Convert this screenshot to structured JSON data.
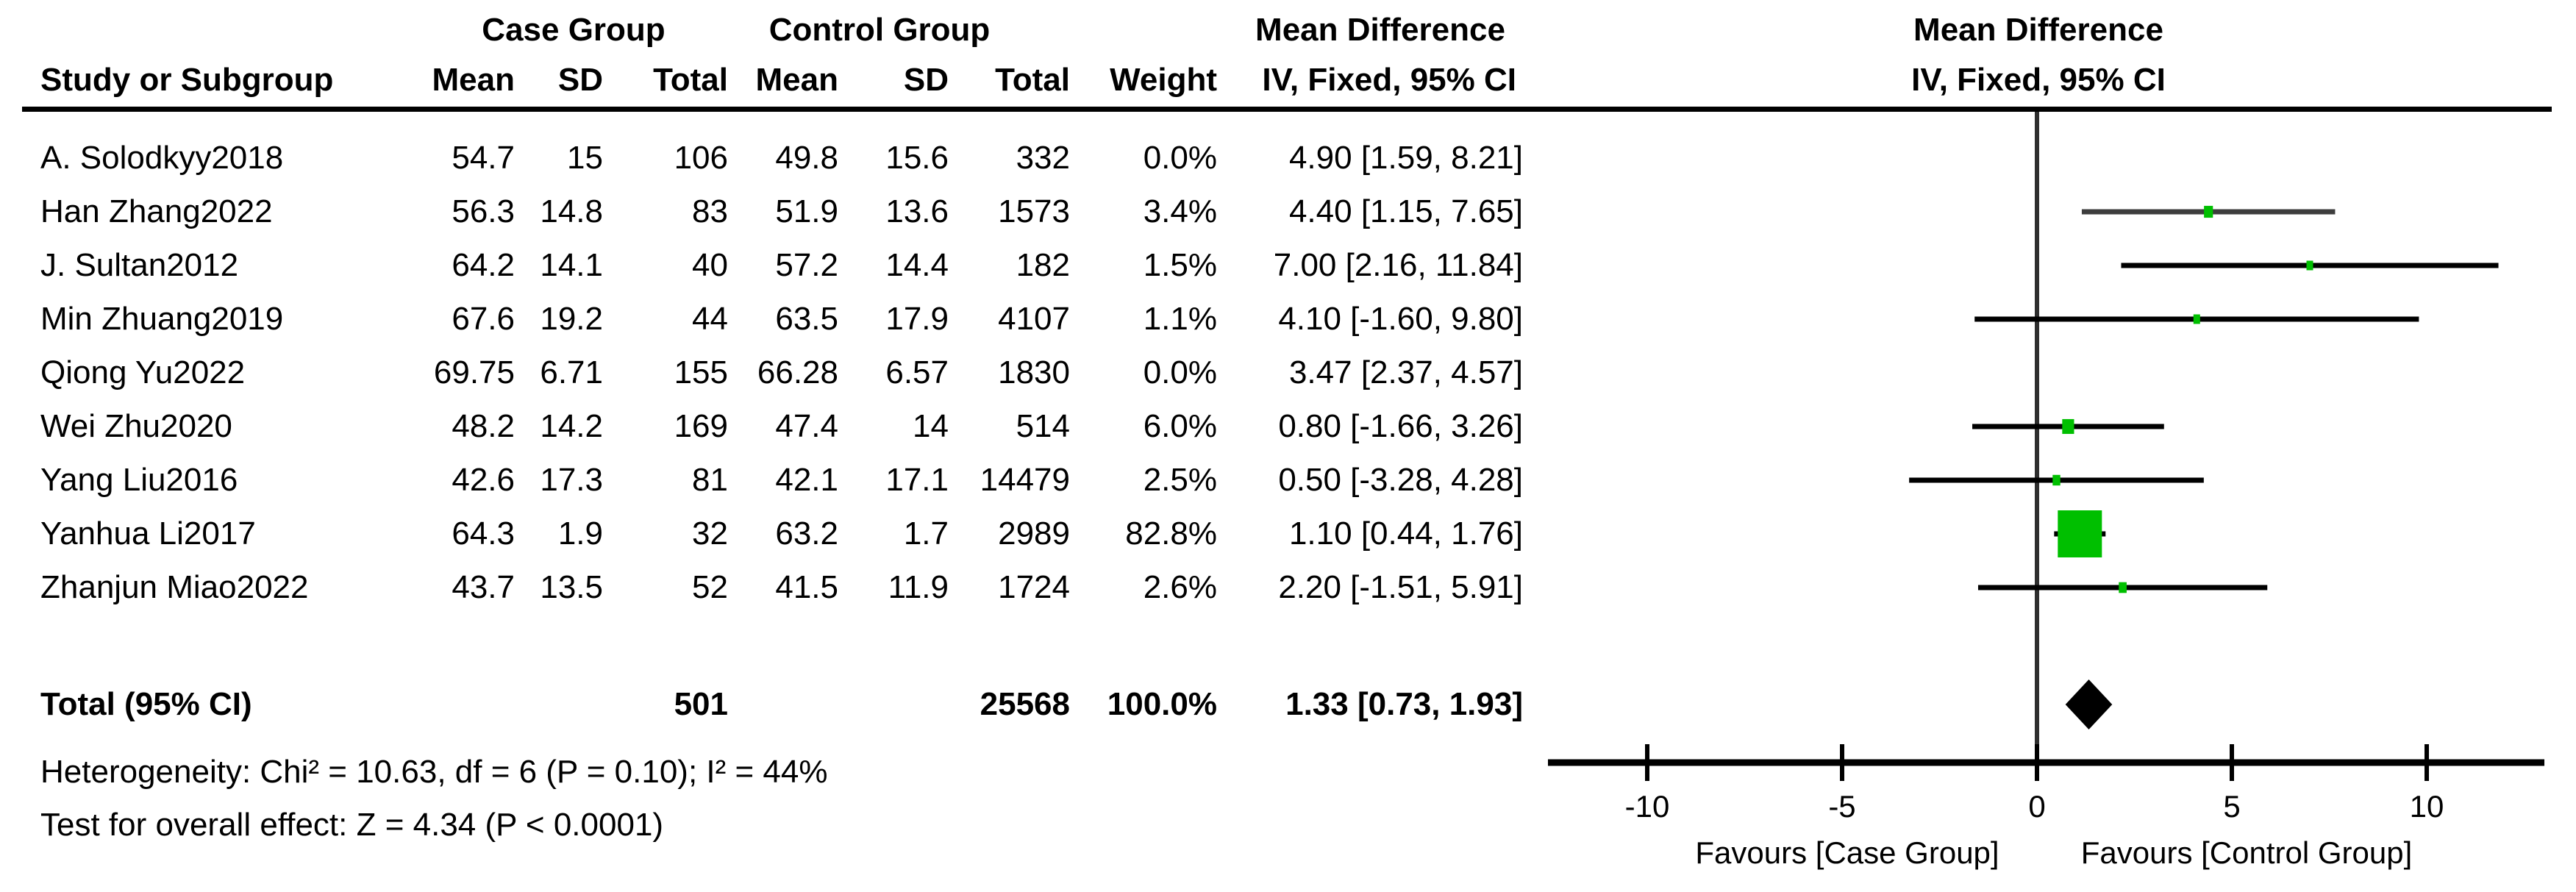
{
  "header": {
    "case_group": "Case Group",
    "control_group": "Control Group",
    "mean_difference_left": "Mean Difference",
    "mean_difference_right": "Mean Difference",
    "study_or_subgroup": "Study or Subgroup",
    "col_mean_case": "Mean",
    "col_sd_case": "SD",
    "col_total_case": "Total",
    "col_mean_ctrl": "Mean",
    "col_sd_ctrl": "SD",
    "col_total_ctrl": "Total",
    "col_weight": "Weight",
    "iv_fixed_left": "IV, Fixed, 95% CI",
    "iv_fixed_right": "IV, Fixed, 95% CI"
  },
  "chart_data": {
    "type": "forest",
    "effect_measure": "Mean Difference",
    "method": "IV, Fixed, 95% CI",
    "studies": [
      {
        "name": "A. Solodkyy2018",
        "case_mean": "54.7",
        "case_sd": "15",
        "case_total": "106",
        "ctrl_mean": "49.8",
        "ctrl_sd": "15.6",
        "ctrl_total": "332",
        "weight": "0.0%",
        "weight_value": 0,
        "md": 4.9,
        "ci_lo": 1.59,
        "ci_hi": 8.21,
        "ci_label": "4.90 [1.59, 8.21]",
        "plotted": false,
        "line_color": "#000000"
      },
      {
        "name": "Han Zhang2022",
        "case_mean": "56.3",
        "case_sd": "14.8",
        "case_total": "83",
        "ctrl_mean": "51.9",
        "ctrl_sd": "13.6",
        "ctrl_total": "1573",
        "weight": "3.4%",
        "weight_value": 3.4,
        "md": 4.4,
        "ci_lo": 1.15,
        "ci_hi": 7.65,
        "ci_label": "4.40 [1.15, 7.65]",
        "plotted": true,
        "line_color": "#3d3d3d"
      },
      {
        "name": "J. Sultan2012",
        "case_mean": "64.2",
        "case_sd": "14.1",
        "case_total": "40",
        "ctrl_mean": "57.2",
        "ctrl_sd": "14.4",
        "ctrl_total": "182",
        "weight": "1.5%",
        "weight_value": 1.5,
        "md": 7.0,
        "ci_lo": 2.16,
        "ci_hi": 11.84,
        "ci_label": "7.00 [2.16, 11.84]",
        "plotted": true,
        "line_color": "#000000"
      },
      {
        "name": "Min Zhuang2019",
        "case_mean": "67.6",
        "case_sd": "19.2",
        "case_total": "44",
        "ctrl_mean": "63.5",
        "ctrl_sd": "17.9",
        "ctrl_total": "4107",
        "weight": "1.1%",
        "weight_value": 1.1,
        "md": 4.1,
        "ci_lo": -1.6,
        "ci_hi": 9.8,
        "ci_label": "4.10 [-1.60, 9.80]",
        "plotted": true,
        "line_color": "#000000"
      },
      {
        "name": "Qiong Yu2022",
        "case_mean": "69.75",
        "case_sd": "6.71",
        "case_total": "155",
        "ctrl_mean": "66.28",
        "ctrl_sd": "6.57",
        "ctrl_total": "1830",
        "weight": "0.0%",
        "weight_value": 0,
        "md": 3.47,
        "ci_lo": 2.37,
        "ci_hi": 4.57,
        "ci_label": "3.47 [2.37, 4.57]",
        "plotted": false,
        "line_color": "#000000"
      },
      {
        "name": "Wei Zhu2020",
        "case_mean": "48.2",
        "case_sd": "14.2",
        "case_total": "169",
        "ctrl_mean": "47.4",
        "ctrl_sd": "14",
        "ctrl_total": "514",
        "weight": "6.0%",
        "weight_value": 6.0,
        "md": 0.8,
        "ci_lo": -1.66,
        "ci_hi": 3.26,
        "ci_label": "0.80 [-1.66, 3.26]",
        "plotted": true,
        "line_color": "#000000"
      },
      {
        "name": "Yang Liu2016",
        "case_mean": "42.6",
        "case_sd": "17.3",
        "case_total": "81",
        "ctrl_mean": "42.1",
        "ctrl_sd": "17.1",
        "ctrl_total": "14479",
        "weight": "2.5%",
        "weight_value": 2.5,
        "md": 0.5,
        "ci_lo": -3.28,
        "ci_hi": 4.28,
        "ci_label": "0.50 [-3.28, 4.28]",
        "plotted": true,
        "line_color": "#000000"
      },
      {
        "name": "Yanhua Li2017",
        "case_mean": "64.3",
        "case_sd": "1.9",
        "case_total": "32",
        "ctrl_mean": "63.2",
        "ctrl_sd": "1.7",
        "ctrl_total": "2989",
        "weight": "82.8%",
        "weight_value": 82.8,
        "md": 1.1,
        "ci_lo": 0.44,
        "ci_hi": 1.76,
        "ci_label": "1.10 [0.44, 1.76]",
        "plotted": true,
        "line_color": "#000000"
      },
      {
        "name": "Zhanjun Miao2022",
        "case_mean": "43.7",
        "case_sd": "13.5",
        "case_total": "52",
        "ctrl_mean": "41.5",
        "ctrl_sd": "11.9",
        "ctrl_total": "1724",
        "weight": "2.6%",
        "weight_value": 2.6,
        "md": 2.2,
        "ci_lo": -1.51,
        "ci_hi": 5.91,
        "ci_label": "2.20 [-1.51, 5.91]",
        "plotted": true,
        "line_color": "#000000"
      }
    ],
    "total": {
      "label": "Total (95% CI)",
      "case_total": "501",
      "ctrl_total": "25568",
      "weight": "100.0%",
      "md": 1.33,
      "ci_lo": 0.73,
      "ci_hi": 1.93,
      "ci_label": "1.33 [0.73, 1.93]"
    },
    "footer": {
      "heterogeneity": "Heterogeneity: Chi² = 10.63, df = 6 (P = 0.10); I² = 44%",
      "overall_effect": "Test for overall effect: Z = 4.34 (P < 0.0001)"
    },
    "axis": {
      "ticks": [
        -10,
        -5,
        0,
        5,
        10
      ],
      "tick_labels": [
        "-10",
        "-5",
        "0",
        "5",
        "10"
      ],
      "xmin": -12.5,
      "xmax": 13.0,
      "favours_left": "Favours [Case Group]",
      "favours_right": "Favours [Control Group]"
    },
    "colors": {
      "marker_green": "#00bf00",
      "ci_line": "#000000",
      "zero_line": "#2e2e2e",
      "axis_line": "#000000",
      "diamond": "#000000"
    }
  }
}
